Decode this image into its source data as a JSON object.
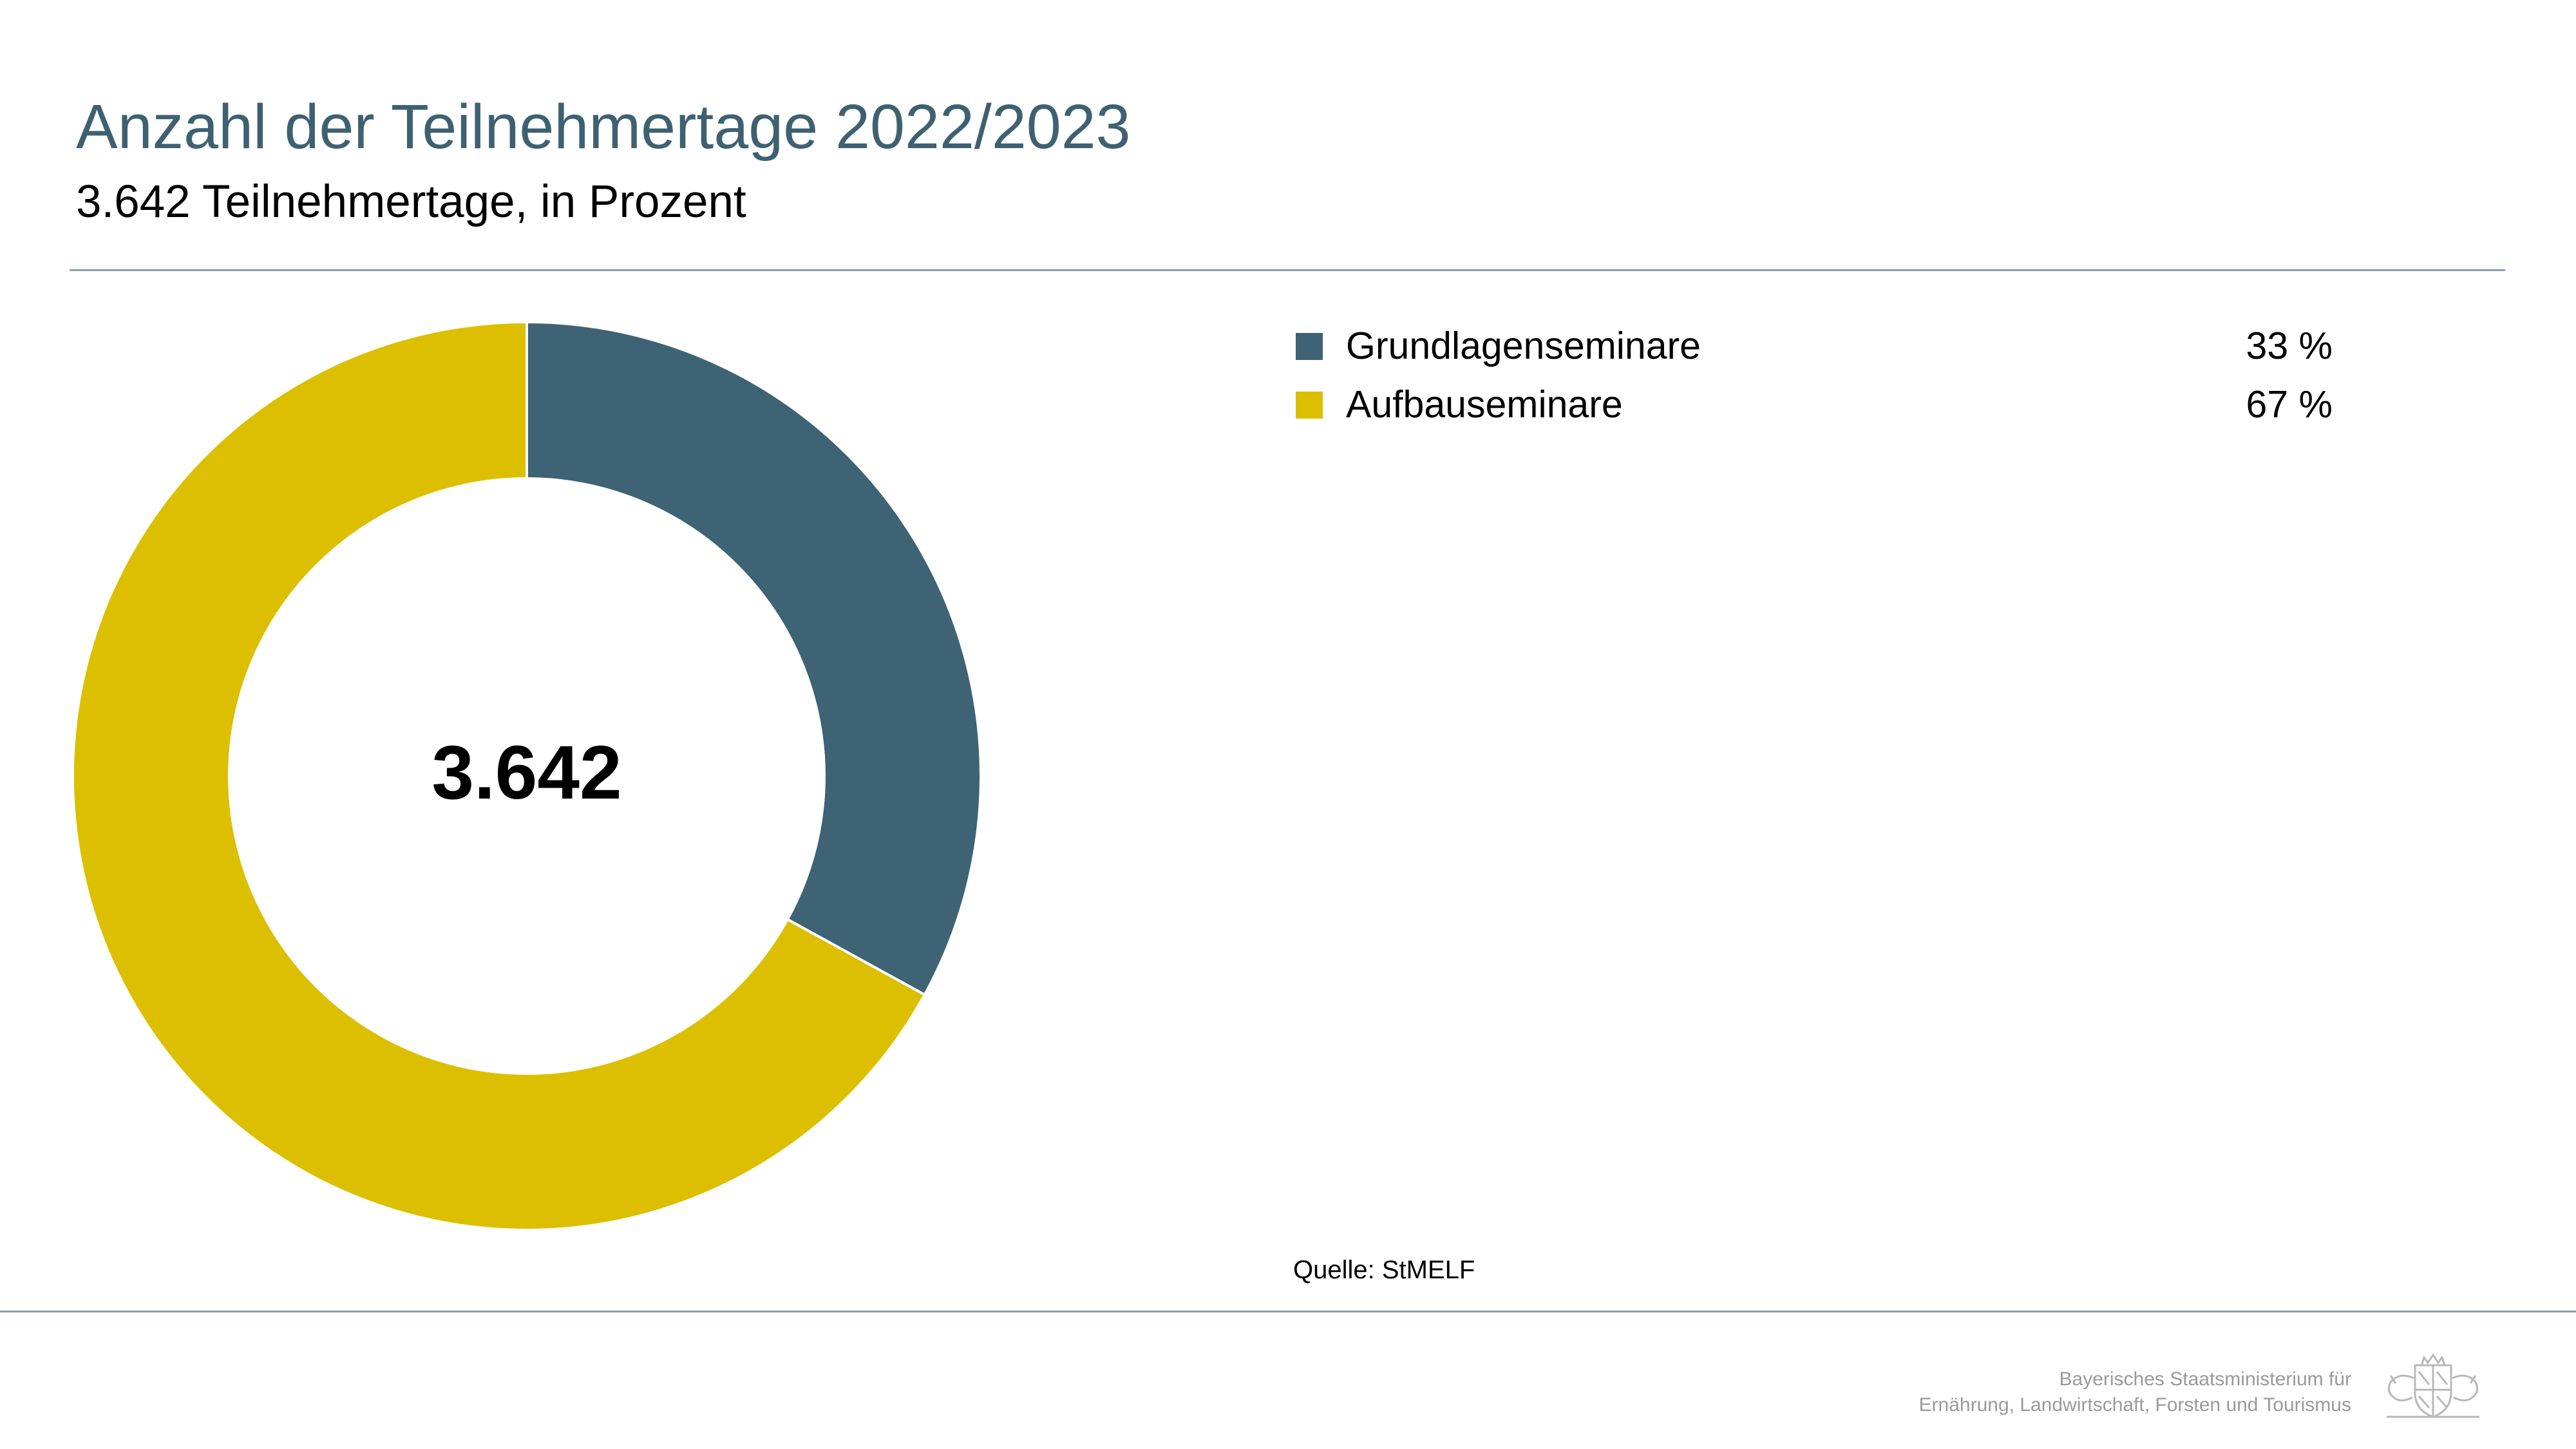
{
  "header": {
    "title": "Anzahl der Teilnehmertage 2022/2023",
    "subtitle": "3.642 Teilnehmertage, in Prozent"
  },
  "chart_data": {
    "type": "pie",
    "style": "donut",
    "center_label": "3.642",
    "categories": [
      "Grundlagenseminare",
      "Aufbauseminare"
    ],
    "values": [
      33,
      67
    ],
    "value_labels": [
      "33 %",
      "67 %"
    ],
    "colors": [
      "#3e6374",
      "#dcbf00"
    ],
    "legend_position": "right"
  },
  "legend": {
    "items": [
      {
        "label": "Grundlagenseminare",
        "value": "33 %",
        "color": "#3e6374"
      },
      {
        "label": "Aufbauseminare",
        "value": "67 %",
        "color": "#dcbf00"
      }
    ]
  },
  "source": "Quelle: StMELF",
  "footer": {
    "ministry_line1": "Bayerisches Staatsministerium für",
    "ministry_line2": "Ernährung, Landwirtschaft, Forsten und Tourismus",
    "crest_icon": "bavarian-coat-of-arms-icon"
  }
}
